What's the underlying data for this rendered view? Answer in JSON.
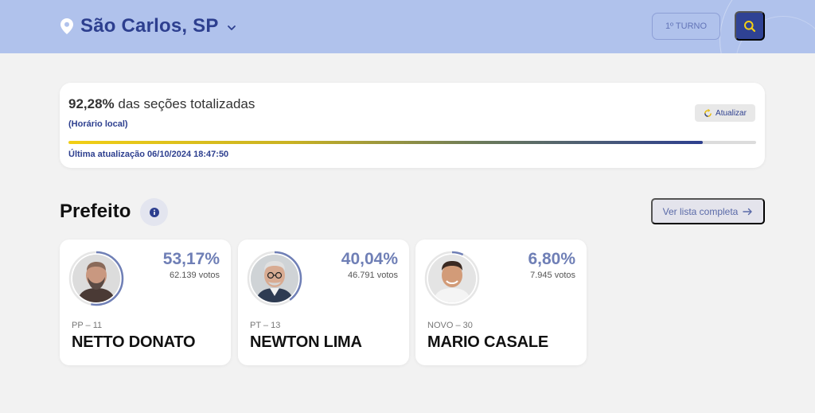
{
  "header": {
    "city": "São Carlos, SP",
    "turno_label": "1º TURNO",
    "icons": {
      "location": "map-pin-icon",
      "dropdown": "chevron-down-icon",
      "search": "search-icon"
    },
    "colors": {
      "background": "#b0c2ec",
      "accent": "#2f4294"
    }
  },
  "status": {
    "percent_text": "92,28%",
    "title_rest": " das seções totalizadas",
    "local_time_note": "(Horário local)",
    "update_button": "Atualizar",
    "progress_percent": 92.28,
    "last_update": "Última atualização 06/10/2024 18:47:50"
  },
  "section": {
    "title": "Prefeito",
    "list_button": "Ver lista completa"
  },
  "candidates": [
    {
      "percent": "53,17%",
      "percent_value": 53.17,
      "votes": "62.139 votos",
      "party": "PP – 11",
      "name": "NETTO DONATO"
    },
    {
      "percent": "40,04%",
      "percent_value": 40.04,
      "votes": "46.791 votos",
      "party": "PT – 13",
      "name": "NEWTON LIMA"
    },
    {
      "percent": "6,80%",
      "percent_value": 6.8,
      "votes": "7.945 votos",
      "party": "NOVO – 30",
      "name": "MARIO CASALE"
    }
  ]
}
